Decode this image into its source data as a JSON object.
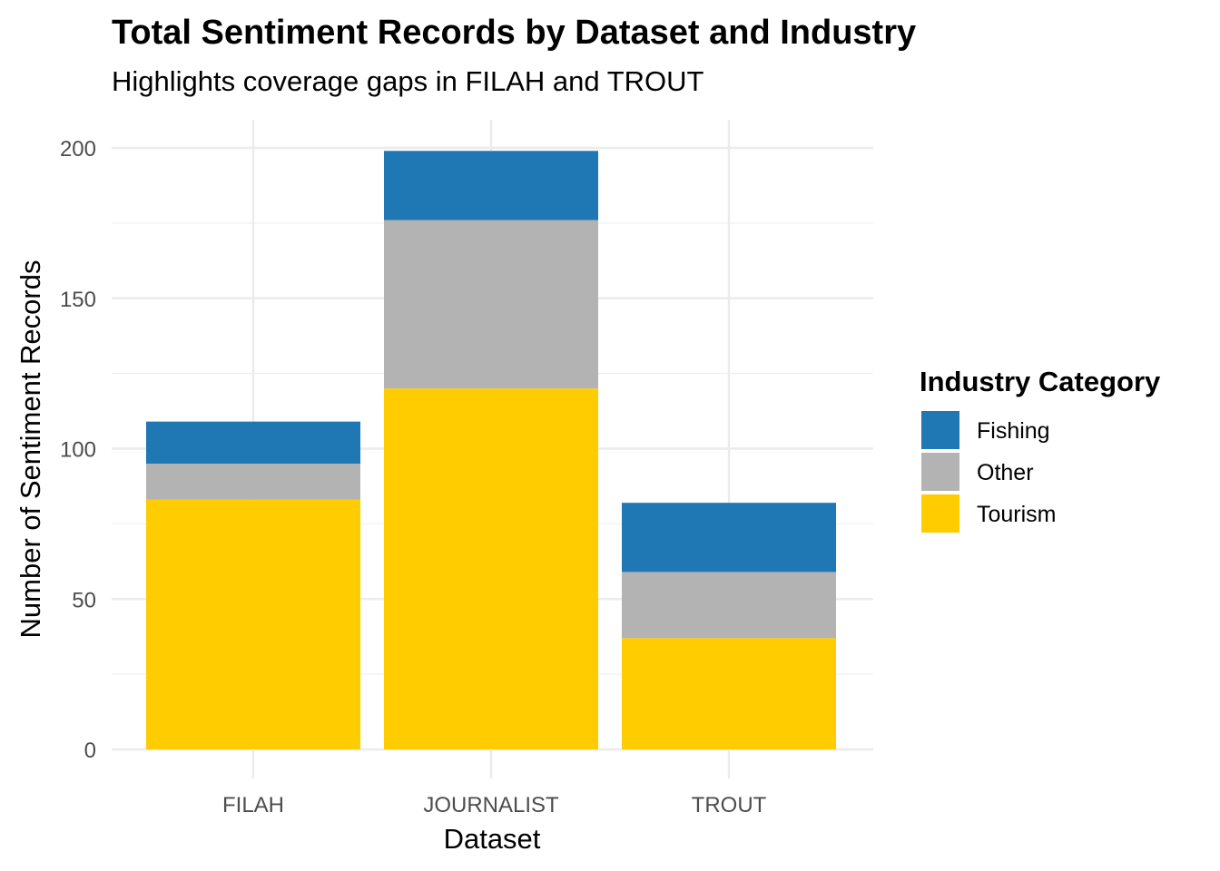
{
  "chart_data": {
    "type": "bar",
    "stacked": true,
    "title": "Total Sentiment Records by Dataset and Industry",
    "subtitle": "Highlights coverage gaps in FILAH and TROUT",
    "xlabel": "Dataset",
    "ylabel": "Number of Sentiment Records",
    "categories": [
      "FILAH",
      "JOURNALIST",
      "TROUT"
    ],
    "ylim": [
      0,
      210
    ],
    "yticks": [
      0,
      50,
      100,
      150,
      200
    ],
    "grid": true,
    "legend": {
      "title": "Industry Category",
      "position": "right"
    },
    "series": [
      {
        "name": "Tourism",
        "color": "#FFCC00",
        "values": [
          83,
          120,
          37
        ]
      },
      {
        "name": "Other",
        "color": "#B3B3B3",
        "values": [
          12,
          56,
          22
        ]
      },
      {
        "name": "Fishing",
        "color": "#1F78B4",
        "values": [
          14,
          23,
          23
        ]
      }
    ],
    "legend_order": [
      "Fishing",
      "Other",
      "Tourism"
    ]
  }
}
